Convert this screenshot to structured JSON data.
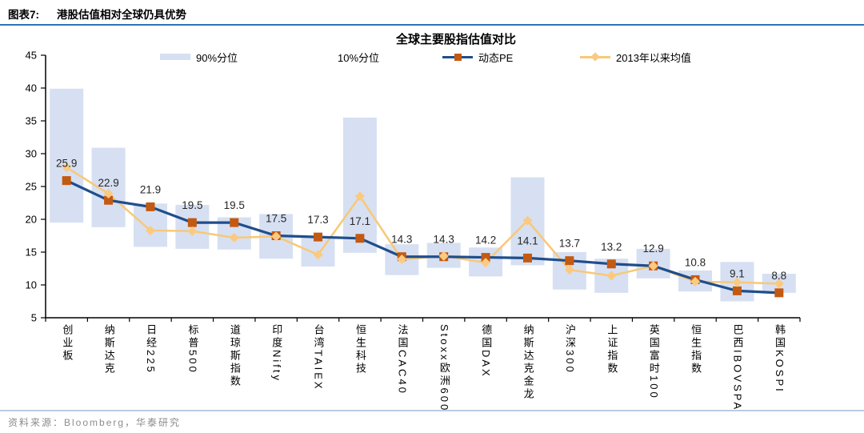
{
  "header": {
    "label": "图表7:",
    "title": "港股估值相对全球仍具优势"
  },
  "source": {
    "text": "资料来源：Bloomberg，华泰研究"
  },
  "chart_data": {
    "type": "bar",
    "subtype": "floating-range-bars-with-lines",
    "title": "全球主要股指估值对比",
    "categories": [
      "创业板",
      "纳斯达克",
      "日经225",
      "标普500",
      "道琼斯指数",
      "印度Nifty",
      "台湾TAIEX",
      "恒生科技",
      "法国CAC40",
      "Stoxx欧洲600",
      "德国DAX",
      "纳斯达克金龙",
      "沪深300",
      "上证指数",
      "英国富时100",
      "恒生指数",
      "巴西IBOVSPA",
      "韩国KOSPI"
    ],
    "series": [
      {
        "name": "90%分位",
        "role": "band_high",
        "type": "range-top",
        "values": [
          39.9,
          30.9,
          22.4,
          22.2,
          20.3,
          20.8,
          17.2,
          35.5,
          16.2,
          16.4,
          15.7,
          26.4,
          15.0,
          14.0,
          15.5,
          12.2,
          13.5,
          11.7
        ]
      },
      {
        "name": "10%分位",
        "role": "band_low",
        "type": "range-bottom",
        "values": [
          19.5,
          18.8,
          15.8,
          15.5,
          15.4,
          14.0,
          12.8,
          14.9,
          11.5,
          12.6,
          11.3,
          13.0,
          9.3,
          8.8,
          11.0,
          9.0,
          7.5,
          8.8
        ]
      },
      {
        "name": "动态PE",
        "role": "pe",
        "type": "line",
        "values": [
          25.9,
          22.9,
          21.9,
          19.5,
          19.5,
          17.5,
          17.3,
          17.1,
          14.3,
          14.3,
          14.2,
          14.1,
          13.7,
          13.2,
          12.9,
          10.8,
          9.1,
          8.8
        ],
        "data_labels": true
      },
      {
        "name": "2013年以来均值",
        "role": "mean",
        "type": "line",
        "values": [
          27.9,
          23.9,
          18.3,
          18.2,
          17.2,
          17.4,
          14.6,
          23.5,
          13.9,
          14.4,
          13.4,
          19.8,
          12.3,
          11.4,
          12.9,
          10.5,
          10.4,
          10.2
        ]
      }
    ],
    "ylim": [
      5,
      45
    ],
    "ytick_step": 5,
    "yticks": [
      5,
      10,
      15,
      20,
      25,
      30,
      35,
      40,
      45
    ],
    "grid": "off",
    "legend_position": "top",
    "colors": {
      "band": "#d6e0f2",
      "pe_line": "#1f4e8c",
      "pe_marker": "#c45911",
      "mean_line": "#f8c878",
      "mean_marker": "#fbca80",
      "header_rule": "#2e74b5",
      "source_rule": "#b9cde4",
      "source_text": "#8c8c8c",
      "label_text": "#262626"
    }
  }
}
